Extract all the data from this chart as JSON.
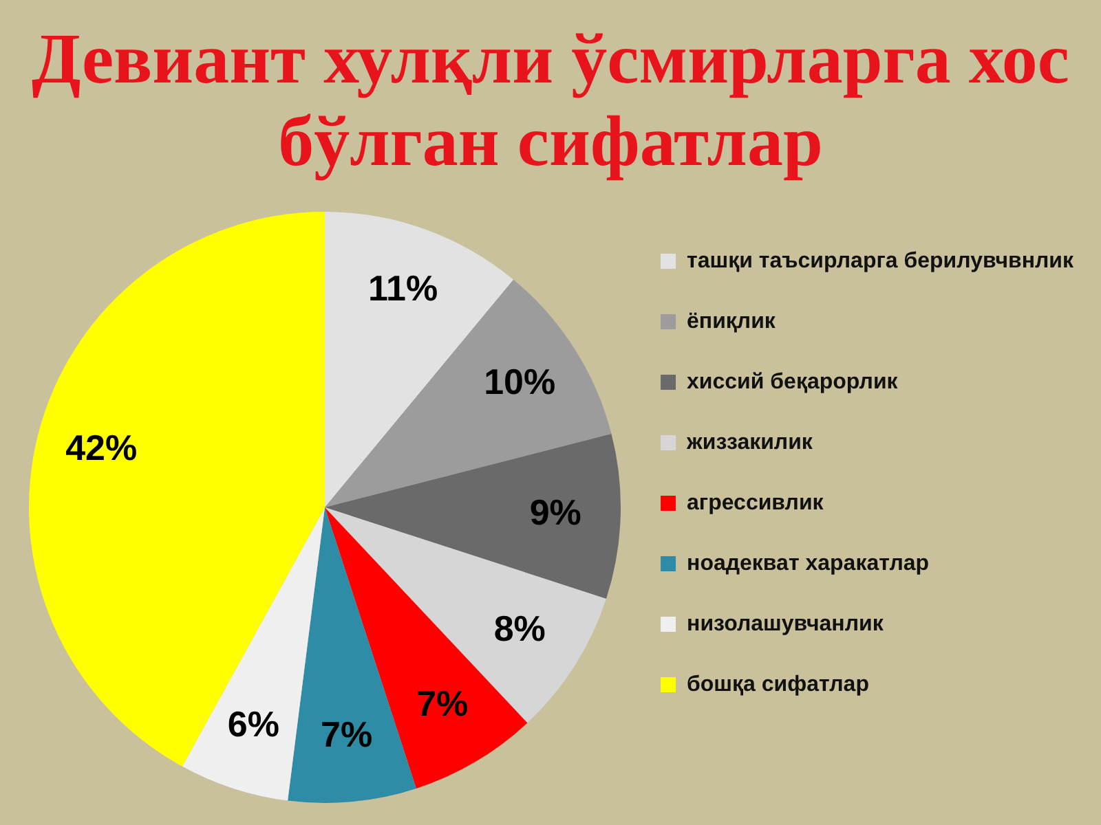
{
  "chart_data": {
    "type": "pie",
    "title": "Девиант хулқли ўсмирларга хос бўлган сифатлар",
    "categories": [
      "ташқи таъсирларга берилувчвнлик",
      "ёпиқлик",
      "хиссий беқарорлик",
      "жиззакилик",
      "агрессивлик",
      "ноадекват харакатлар",
      "низолашувчанлик",
      "бошқа сифатлар"
    ],
    "values": [
      11,
      10,
      9,
      8,
      7,
      7,
      6,
      42
    ],
    "value_labels": [
      "11%",
      "10%",
      "9%",
      "8%",
      "7%",
      "7%",
      "6%",
      "42%"
    ],
    "colors": [
      "#e2e2e2",
      "#9c9c9c",
      "#6a6a6a",
      "#d6d6d6",
      "#ff0000",
      "#2e8ca6",
      "#efefef",
      "#ffff00"
    ],
    "legend": "right"
  }
}
